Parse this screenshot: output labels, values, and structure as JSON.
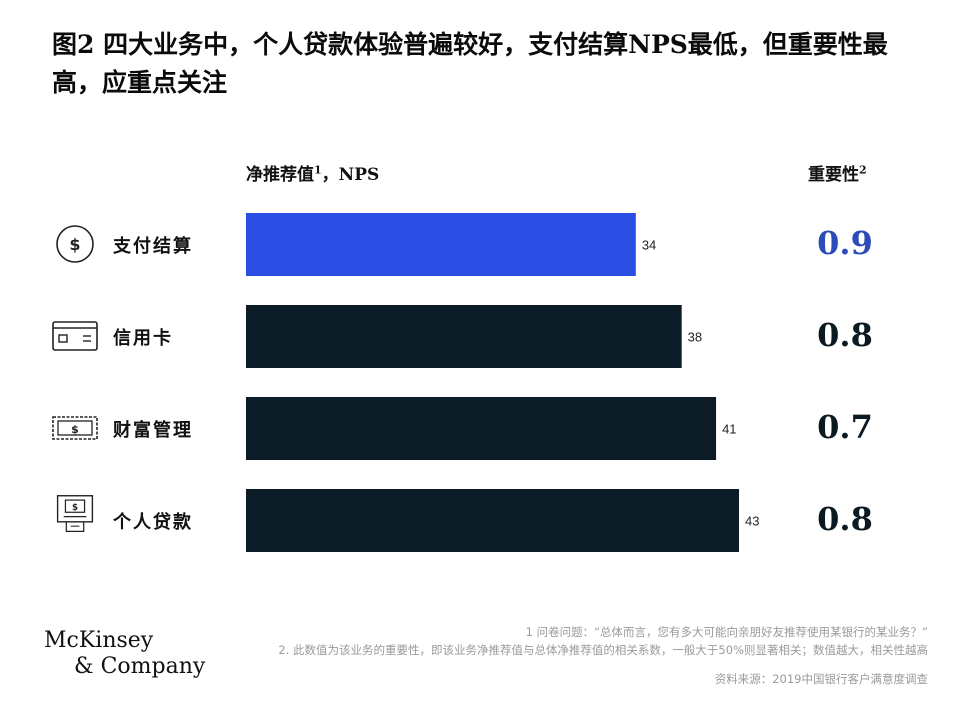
{
  "title": "图2 四大业务中，个人贷款体验普遍较好，支付结算NPS最低，但重要性最高，应重点关注",
  "headers": {
    "nps_label": "净推荐值",
    "nps_sup": "1",
    "nps_unit": "，NPS",
    "importance_label": "重要性",
    "importance_sup": "2"
  },
  "chart_data": {
    "type": "bar",
    "orientation": "horizontal",
    "categories": [
      "支付结算",
      "信用卡",
      "财富管理",
      "个人贷款"
    ],
    "values": [
      34,
      38,
      41,
      43
    ],
    "importance": [
      "0.9",
      "0.8",
      "0.7",
      "0.8"
    ],
    "colors": [
      "#2a4ee3",
      "#0b1c26",
      "#0b1c26",
      "#0b1c26"
    ],
    "xlim": [
      0,
      43
    ]
  },
  "rows": [
    {
      "label": "支付结算",
      "icon": "dollar-circle-icon"
    },
    {
      "label": "信用卡",
      "icon": "credit-card-icon"
    },
    {
      "label": "财富管理",
      "icon": "banknote-icon"
    },
    {
      "label": "个人贷款",
      "icon": "atm-icon"
    }
  ],
  "footnotes": {
    "note1": "1 问卷问题：“总体而言，您有多大可能向亲朋好友推荐使用某银行的某业务？”",
    "note2": "2. 此数值为该业务的重要性，即该业务净推荐值与总体净推荐值的相关系数，一般大于50%则显著相关；数值越大，相关性越高",
    "source": "资料来源：2019中国银行客户满意度调查"
  },
  "logo": {
    "line1": "McKinsey",
    "line2": "& Company"
  }
}
